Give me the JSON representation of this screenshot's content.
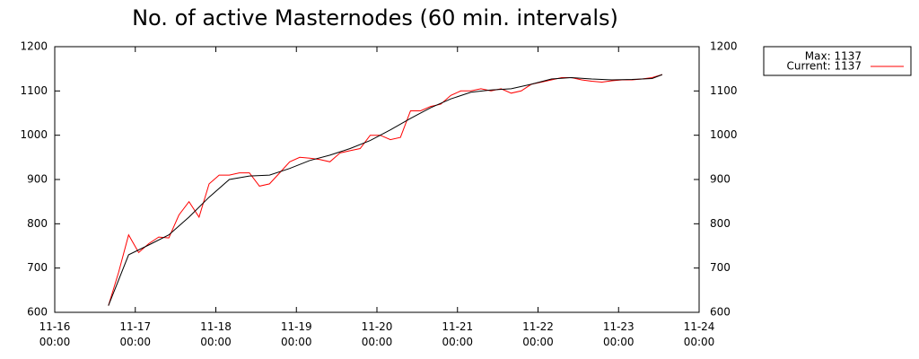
{
  "chart_data": {
    "type": "line",
    "title": "No. of active Masternodes (60 min. intervals)",
    "annotations": [
      "Max: 1137"
    ],
    "xlim": [
      "11-16 00:00",
      "11-24 00:00"
    ],
    "xticks": [
      {
        "value": "11-16 00:00",
        "label": [
          "11-16",
          "00:00"
        ]
      },
      {
        "value": "11-17 00:00",
        "label": [
          "11-17",
          "00:00"
        ]
      },
      {
        "value": "11-18 00:00",
        "label": [
          "11-18",
          "00:00"
        ]
      },
      {
        "value": "11-19 00:00",
        "label": [
          "11-19",
          "00:00"
        ]
      },
      {
        "value": "11-20 00:00",
        "label": [
          "11-20",
          "00:00"
        ]
      },
      {
        "value": "11-21 00:00",
        "label": [
          "11-21",
          "00:00"
        ]
      },
      {
        "value": "11-22 00:00",
        "label": [
          "11-22",
          "00:00"
        ]
      },
      {
        "value": "11-23 00:00",
        "label": [
          "11-23",
          "00:00"
        ]
      },
      {
        "value": "11-24 00:00",
        "label": [
          "11-24",
          "00:00"
        ]
      }
    ],
    "ylim": [
      600,
      1200
    ],
    "yticks": [
      600,
      700,
      800,
      900,
      1000,
      1100,
      1200
    ],
    "mirror_y_axis": true,
    "grid": false,
    "legend": "outside-top-right",
    "series": [
      {
        "name": "Current: 1137",
        "color": "#ff0000",
        "x": [
          "11-16 16:00",
          "11-16 19:00",
          "11-16 22:00",
          "11-17 01:00",
          "11-17 04:00",
          "11-17 07:00",
          "11-17 10:00",
          "11-17 13:00",
          "11-17 16:00",
          "11-17 19:00",
          "11-17 22:00",
          "11-18 01:00",
          "11-18 04:00",
          "11-18 07:00",
          "11-18 10:00",
          "11-18 13:00",
          "11-18 16:00",
          "11-18 19:00",
          "11-18 22:00",
          "11-19 01:00",
          "11-19 04:00",
          "11-19 07:00",
          "11-19 10:00",
          "11-19 13:00",
          "11-19 16:00",
          "11-19 19:00",
          "11-19 22:00",
          "11-20 01:00",
          "11-20 04:00",
          "11-20 07:00",
          "11-20 10:00",
          "11-20 13:00",
          "11-20 16:00",
          "11-20 19:00",
          "11-20 22:00",
          "11-21 01:00",
          "11-21 04:00",
          "11-21 07:00",
          "11-21 10:00",
          "11-21 13:00",
          "11-21 16:00",
          "11-21 19:00",
          "11-21 22:00",
          "11-22 01:00",
          "11-22 04:00",
          "11-22 07:00",
          "11-22 10:00",
          "11-22 13:00",
          "11-22 16:00",
          "11-22 19:00",
          "11-22 22:00",
          "11-23 01:00",
          "11-23 04:00",
          "11-23 07:00",
          "11-23 10:00",
          "11-23 13:00"
        ],
        "values": [
          615,
          690,
          775,
          735,
          755,
          770,
          768,
          820,
          850,
          815,
          890,
          910,
          910,
          915,
          915,
          885,
          890,
          915,
          940,
          950,
          948,
          945,
          940,
          960,
          965,
          970,
          1000,
          1000,
          990,
          995,
          1055,
          1055,
          1065,
          1070,
          1090,
          1100,
          1100,
          1105,
          1100,
          1105,
          1095,
          1100,
          1115,
          1120,
          1125,
          1130,
          1130,
          1125,
          1122,
          1120,
          1123,
          1125,
          1125,
          1127,
          1130,
          1137
        ]
      },
      {
        "color": "#000000",
        "x": [
          "11-16 16:00",
          "11-16 22:00",
          "11-17 04:00",
          "11-17 10:00",
          "11-17 16:00",
          "11-17 22:00",
          "11-18 04:00",
          "11-18 10:00",
          "11-18 16:00",
          "11-18 22:00",
          "11-19 04:00",
          "11-19 10:00",
          "11-19 16:00",
          "11-19 22:00",
          "11-20 04:00",
          "11-20 10:00",
          "11-20 16:00",
          "11-20 22:00",
          "11-21 04:00",
          "11-21 10:00",
          "11-21 16:00",
          "11-21 22:00",
          "11-22 04:00",
          "11-22 10:00",
          "11-22 16:00",
          "11-22 22:00",
          "11-23 04:00",
          "11-23 10:00",
          "11-23 13:00"
        ],
        "values": [
          615,
          730,
          752,
          775,
          815,
          860,
          900,
          908,
          910,
          925,
          943,
          955,
          970,
          988,
          1012,
          1038,
          1062,
          1082,
          1097,
          1102,
          1105,
          1115,
          1127,
          1130,
          1127,
          1125,
          1126,
          1128,
          1137
        ]
      }
    ]
  }
}
